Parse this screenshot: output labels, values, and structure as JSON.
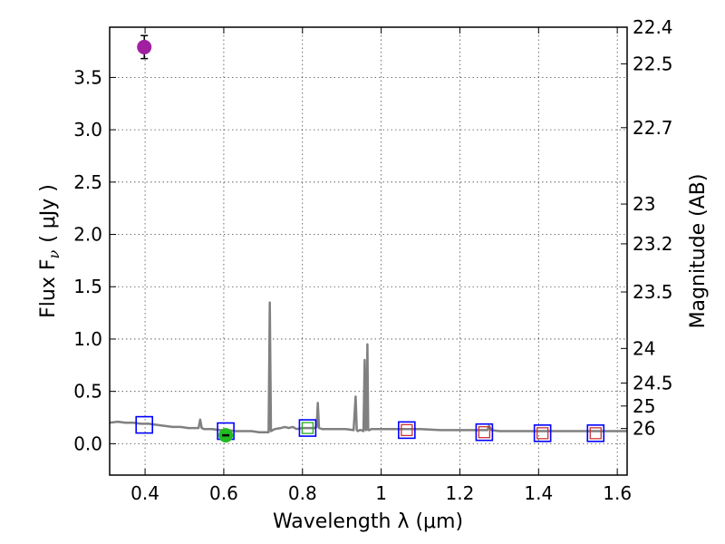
{
  "chart_data": {
    "type": "scatter",
    "xlabel": "Wavelength  λ (μm)",
    "ylabel_left": "Flux  F",
    "ylabel_left_sub": "ν",
    "ylabel_left_unit": "( μJy )",
    "ylabel_right": "Magnitude (AB)",
    "xlim": [
      0.31,
      1.625
    ],
    "ylim": [
      -0.3,
      3.98
    ],
    "grid": true,
    "x_ticks": [
      0.4,
      0.6,
      0.8,
      1.0,
      1.2,
      1.4,
      1.6
    ],
    "x_tick_labels": [
      "0.4",
      "0.6",
      "0.8",
      "1",
      "1.2",
      "1.4",
      "1.6"
    ],
    "y_ticks": [
      0.0,
      0.5,
      1.0,
      1.5,
      2.0,
      2.5,
      3.0,
      3.5
    ],
    "y_tick_labels": [
      "0.0",
      "0.5",
      "1.0",
      "1.5",
      "2.0",
      "2.5",
      "3.0",
      "3.5"
    ],
    "right_ticks": [
      {
        "label": "22.4",
        "flux": 3.98
      },
      {
        "label": "22.5",
        "flux": 3.63
      },
      {
        "label": "22.7",
        "flux": 3.02
      },
      {
        "label": "23",
        "flux": 2.29
      },
      {
        "label": "23.2",
        "flux": 1.91
      },
      {
        "label": "23.5",
        "flux": 1.45
      },
      {
        "label": "24",
        "flux": 0.91
      },
      {
        "label": "24.5",
        "flux": 0.58
      },
      {
        "label": "25",
        "flux": 0.36
      },
      {
        "label": "26",
        "flux": 0.145
      }
    ],
    "spectrum": {
      "color": "#808080",
      "x": [
        0.31,
        0.33,
        0.35,
        0.37,
        0.39,
        0.41,
        0.43,
        0.45,
        0.47,
        0.49,
        0.51,
        0.53,
        0.536,
        0.54,
        0.544,
        0.55,
        0.57,
        0.59,
        0.61,
        0.63,
        0.65,
        0.67,
        0.69,
        0.71,
        0.714,
        0.717,
        0.72,
        0.724,
        0.73,
        0.745,
        0.755,
        0.765,
        0.775,
        0.785,
        0.8,
        0.81,
        0.82,
        0.83,
        0.836,
        0.839,
        0.842,
        0.85,
        0.87,
        0.89,
        0.91,
        0.93,
        0.935,
        0.938,
        0.941,
        0.945,
        0.95,
        0.955,
        0.958,
        0.961,
        0.963,
        0.965,
        0.967,
        0.97,
        0.975,
        0.98,
        1.0,
        1.05,
        1.1,
        1.15,
        1.2,
        1.24,
        1.27,
        1.274,
        1.28,
        1.3,
        1.35,
        1.4,
        1.45,
        1.5,
        1.55,
        1.6,
        1.625
      ],
      "y": [
        0.2,
        0.21,
        0.2,
        0.2,
        0.19,
        0.19,
        0.18,
        0.17,
        0.16,
        0.16,
        0.15,
        0.15,
        0.15,
        0.23,
        0.15,
        0.14,
        0.14,
        0.13,
        0.13,
        0.12,
        0.12,
        0.12,
        0.11,
        0.11,
        0.11,
        1.35,
        0.12,
        0.13,
        0.14,
        0.15,
        0.16,
        0.15,
        0.16,
        0.14,
        0.15,
        0.15,
        0.15,
        0.15,
        0.16,
        0.39,
        0.15,
        0.14,
        0.14,
        0.14,
        0.14,
        0.13,
        0.45,
        0.13,
        0.12,
        0.13,
        0.13,
        0.12,
        0.8,
        0.13,
        0.14,
        0.95,
        0.13,
        0.13,
        0.14,
        0.14,
        0.14,
        0.14,
        0.14,
        0.13,
        0.13,
        0.13,
        0.13,
        0.17,
        0.13,
        0.12,
        0.12,
        0.12,
        0.12,
        0.12,
        0.12,
        0.12,
        0.12
      ]
    },
    "detection": {
      "x": 0.398,
      "y": 3.79,
      "yerr": 0.11,
      "color": "#a020a0"
    },
    "model_points": {
      "color": "#0000ff",
      "points": [
        {
          "x": 0.398,
          "y": 0.18
        },
        {
          "x": 0.605,
          "y": 0.12
        },
        {
          "x": 0.813,
          "y": 0.15
        },
        {
          "x": 1.065,
          "y": 0.13
        },
        {
          "x": 1.262,
          "y": 0.11
        },
        {
          "x": 1.41,
          "y": 0.1
        },
        {
          "x": 1.545,
          "y": 0.1
        }
      ]
    },
    "inner_markers": [
      {
        "x": 0.813,
        "y": 0.15,
        "color": "#22aa22"
      },
      {
        "x": 1.065,
        "y": 0.13,
        "color": "#cc3333"
      },
      {
        "x": 1.262,
        "y": 0.11,
        "color": "#cc3333"
      },
      {
        "x": 1.41,
        "y": 0.1,
        "color": "#cc3333"
      },
      {
        "x": 1.545,
        "y": 0.1,
        "color": "#cc3333"
      }
    ],
    "upper_limit_point": {
      "x": 0.605,
      "y": 0.08,
      "color": "#22bb22"
    }
  }
}
